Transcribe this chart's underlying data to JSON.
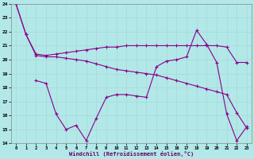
{
  "xlabel": "Windchill (Refroidissement éolien,°C)",
  "background_color": "#b2e8e8",
  "grid_color": "#a8d8d8",
  "line_color": "#880088",
  "xlim": [
    -0.5,
    23.5
  ],
  "ylim": [
    14,
    24
  ],
  "yticks": [
    14,
    15,
    16,
    17,
    18,
    19,
    20,
    21,
    22,
    23,
    24
  ],
  "xticks": [
    0,
    1,
    2,
    3,
    4,
    5,
    6,
    7,
    8,
    9,
    10,
    11,
    12,
    13,
    14,
    15,
    16,
    17,
    18,
    19,
    20,
    21,
    22,
    23
  ],
  "line1_x": [
    0,
    1,
    2,
    3,
    4,
    5,
    6,
    7,
    8,
    9,
    10,
    11,
    12,
    13,
    14,
    15,
    16,
    17,
    18,
    19,
    20,
    21,
    22,
    23
  ],
  "line1_y": [
    24,
    21.8,
    20.4,
    20.3,
    20.4,
    20.5,
    20.6,
    20.7,
    20.8,
    20.9,
    20.9,
    21.0,
    21.0,
    21.0,
    21.0,
    21.0,
    21.0,
    21.0,
    21.0,
    21.0,
    21.0,
    20.9,
    19.8,
    19.8
  ],
  "line2_x": [
    0,
    1,
    2,
    3,
    4,
    5,
    6,
    7,
    8,
    9,
    10,
    11,
    12,
    13,
    14,
    15,
    16,
    17,
    18,
    19,
    20,
    21,
    22,
    23
  ],
  "line2_y": [
    24,
    21.8,
    20.3,
    20.2,
    20.2,
    20.1,
    20.0,
    19.9,
    19.7,
    19.5,
    19.3,
    19.2,
    19.1,
    19.0,
    18.9,
    18.7,
    18.5,
    18.3,
    18.1,
    17.9,
    17.7,
    17.5,
    16.2,
    15.1
  ],
  "line3_x": [
    2,
    3,
    4,
    5,
    6,
    7,
    8,
    9,
    10,
    11,
    12,
    13,
    14,
    15,
    16,
    17,
    18,
    19,
    20,
    21,
    22,
    23
  ],
  "line3_y": [
    18.5,
    18.3,
    16.1,
    15.0,
    15.3,
    14.2,
    15.8,
    17.3,
    17.5,
    17.5,
    17.4,
    17.3,
    19.5,
    19.9,
    20.0,
    20.2,
    22.1,
    21.1,
    19.8,
    16.1,
    14.2,
    15.2
  ]
}
